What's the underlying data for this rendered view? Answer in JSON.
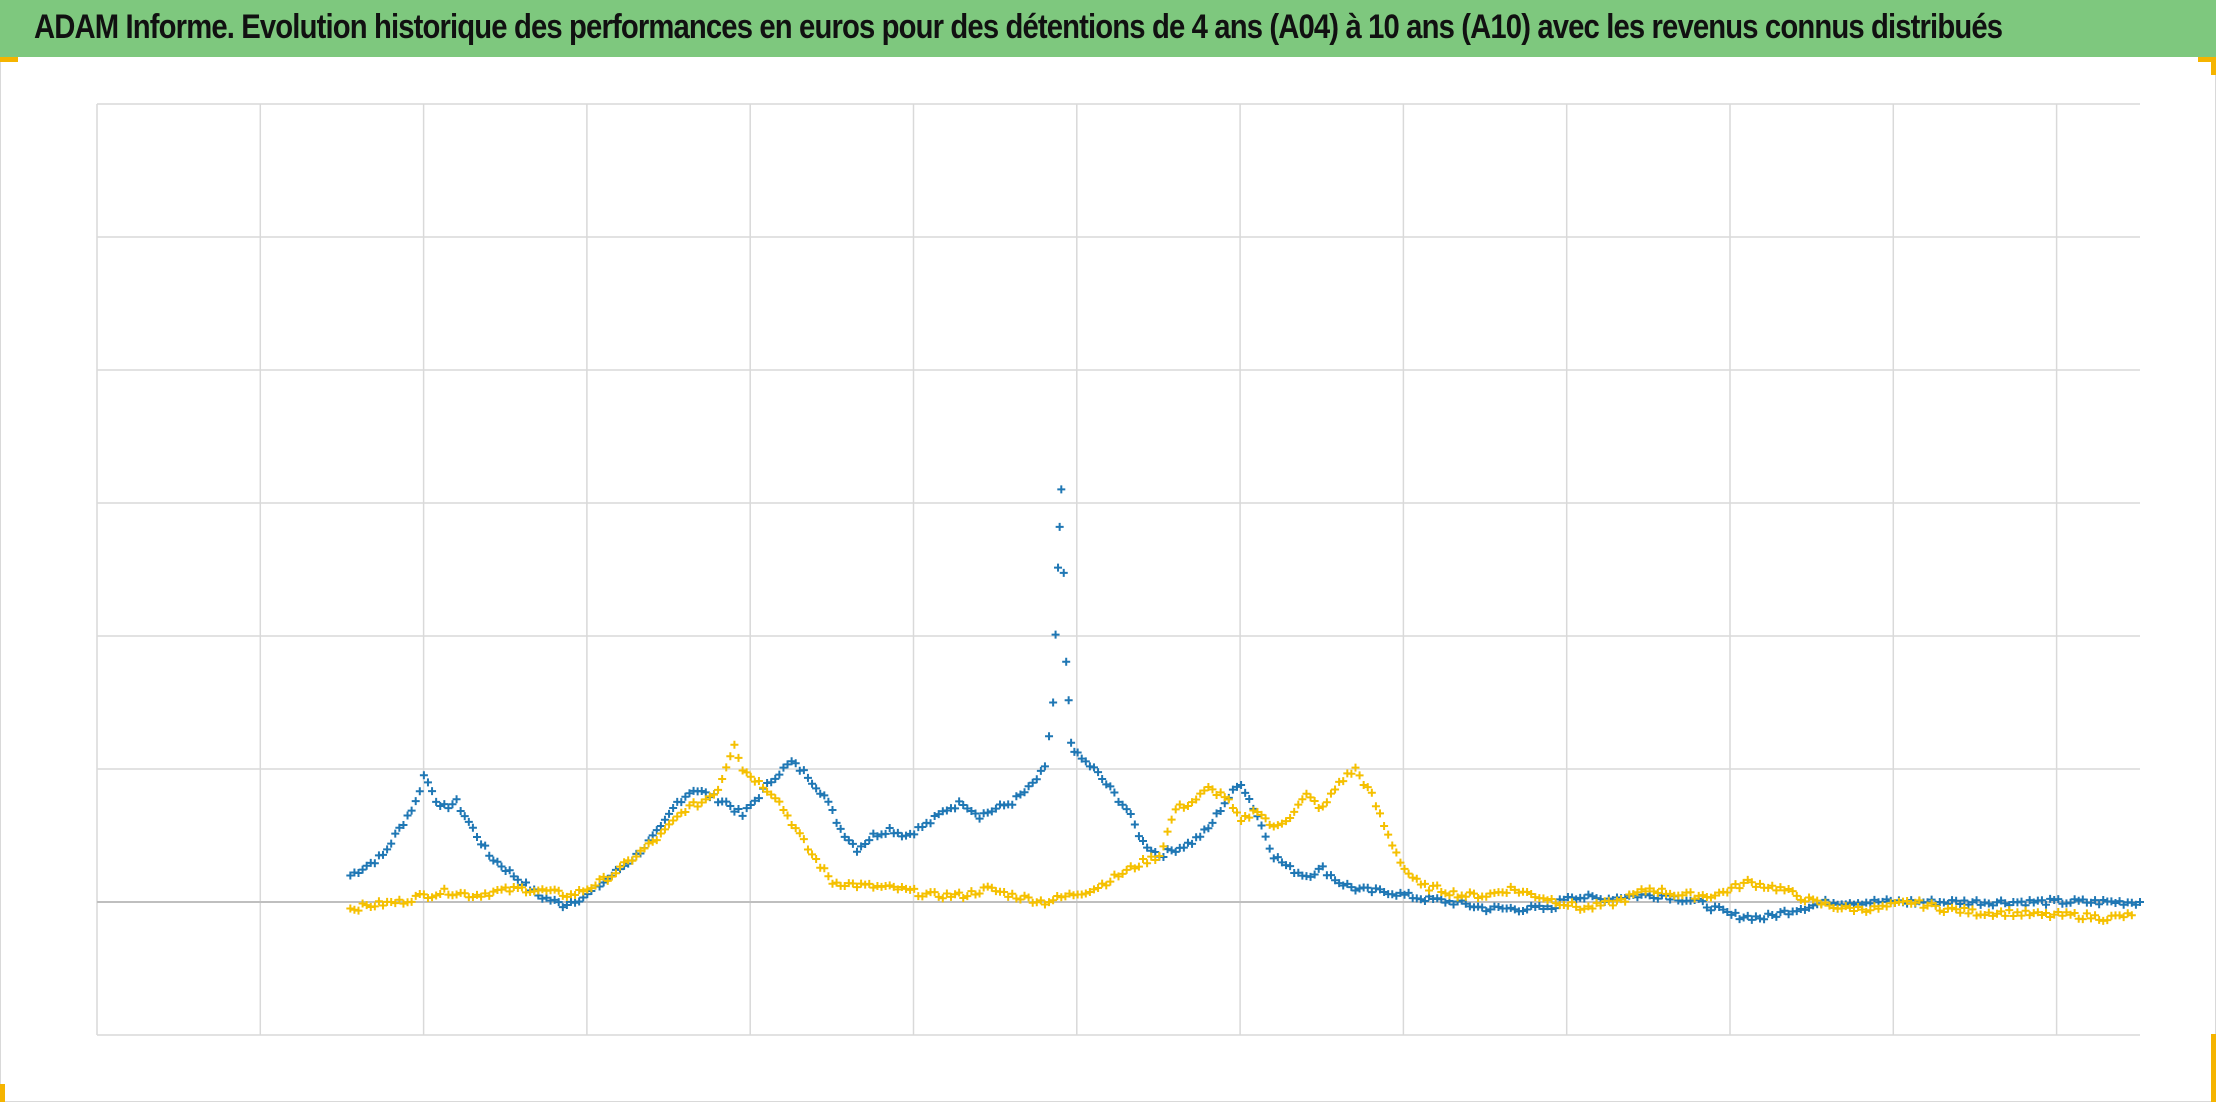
{
  "title": "ADAM Informe. Evolution historique des performances en euros pour des détentions de 4 ans (A04) à 10 ans (A10) avec les revenus connus distribués",
  "colors": {
    "title_bar": "#7ec87e",
    "series_a04": "#1f77b4",
    "series_a10": "#f5c000",
    "grid": "#d9d9d9",
    "zero_line": "#bfbfbf",
    "corner_marks": "#f5b400"
  },
  "chart_data": {
    "type": "scatter",
    "marker": "plus",
    "x_range": [
      0,
      12.5
    ],
    "y_range": [
      -1,
      6
    ],
    "vertical_gridlines": 13,
    "horizontal_gridlines": 8,
    "zero_line": 0,
    "axis_labels_visible": false,
    "legend": "none",
    "series": [
      {
        "key": "a04",
        "color": "#1f77b4",
        "points": [
          [
            1.55,
            0.2
          ],
          [
            1.75,
            0.35
          ],
          [
            1.85,
            0.55
          ],
          [
            1.95,
            0.75
          ],
          [
            2.0,
            0.95
          ],
          [
            2.05,
            0.85
          ],
          [
            2.1,
            0.7
          ],
          [
            2.2,
            0.75
          ],
          [
            2.3,
            0.55
          ],
          [
            2.4,
            0.35
          ],
          [
            2.5,
            0.25
          ],
          [
            2.6,
            0.15
          ],
          [
            2.7,
            0.05
          ],
          [
            2.85,
            -0.02
          ],
          [
            3.0,
            0.05
          ],
          [
            3.1,
            0.15
          ],
          [
            3.2,
            0.25
          ],
          [
            3.3,
            0.35
          ],
          [
            3.45,
            0.55
          ],
          [
            3.55,
            0.75
          ],
          [
            3.65,
            0.85
          ],
          [
            3.75,
            0.8
          ],
          [
            3.85,
            0.75
          ],
          [
            3.95,
            0.65
          ],
          [
            4.05,
            0.8
          ],
          [
            4.15,
            0.95
          ],
          [
            4.25,
            1.05
          ],
          [
            4.35,
            0.95
          ],
          [
            4.45,
            0.8
          ],
          [
            4.55,
            0.55
          ],
          [
            4.65,
            0.4
          ],
          [
            4.75,
            0.5
          ],
          [
            4.85,
            0.55
          ],
          [
            4.95,
            0.5
          ],
          [
            5.1,
            0.6
          ],
          [
            5.2,
            0.7
          ],
          [
            5.3,
            0.75
          ],
          [
            5.4,
            0.65
          ],
          [
            5.5,
            0.7
          ],
          [
            5.6,
            0.75
          ],
          [
            5.7,
            0.85
          ],
          [
            5.8,
            1.0
          ],
          [
            5.85,
            1.5
          ],
          [
            5.88,
            2.5
          ],
          [
            5.9,
            3.1
          ],
          [
            5.93,
            1.8
          ],
          [
            5.96,
            1.2
          ],
          [
            6.0,
            1.1
          ],
          [
            6.1,
            1.0
          ],
          [
            6.2,
            0.85
          ],
          [
            6.3,
            0.7
          ],
          [
            6.4,
            0.45
          ],
          [
            6.5,
            0.35
          ],
          [
            6.6,
            0.4
          ],
          [
            6.7,
            0.45
          ],
          [
            6.8,
            0.55
          ],
          [
            6.9,
            0.75
          ],
          [
            7.0,
            0.9
          ],
          [
            7.1,
            0.65
          ],
          [
            7.2,
            0.35
          ],
          [
            7.3,
            0.25
          ],
          [
            7.4,
            0.2
          ],
          [
            7.5,
            0.25
          ],
          [
            7.6,
            0.15
          ],
          [
            7.7,
            0.1
          ],
          [
            7.8,
            0.08
          ],
          [
            7.9,
            0.08
          ],
          [
            8.0,
            0.05
          ],
          [
            8.15,
            0.02
          ],
          [
            8.3,
            0.0
          ],
          [
            8.5,
            -0.05
          ],
          [
            8.7,
            -0.05
          ],
          [
            8.9,
            -0.05
          ],
          [
            9.0,
            0.05
          ],
          [
            9.2,
            0.02
          ],
          [
            9.4,
            0.05
          ],
          [
            9.6,
            0.05
          ],
          [
            9.8,
            0.0
          ],
          [
            10.0,
            -0.1
          ],
          [
            10.2,
            -0.12
          ],
          [
            10.4,
            -0.05
          ],
          [
            10.6,
            0.0
          ],
          [
            10.8,
            0.0
          ],
          [
            11.0,
            0.0
          ],
          [
            11.2,
            0.0
          ],
          [
            11.4,
            0.0
          ],
          [
            11.6,
            0.0
          ],
          [
            11.8,
            0.0
          ],
          [
            12.0,
            0.0
          ],
          [
            12.2,
            0.0
          ],
          [
            12.5,
            0.0
          ]
        ]
      },
      {
        "key": "a10",
        "color": "#f5c000",
        "points": [
          [
            1.55,
            -0.05
          ],
          [
            1.7,
            -0.02
          ],
          [
            1.85,
            0.0
          ],
          [
            2.0,
            0.05
          ],
          [
            2.15,
            0.08
          ],
          [
            2.3,
            0.05
          ],
          [
            2.45,
            0.08
          ],
          [
            2.6,
            0.1
          ],
          [
            2.75,
            0.08
          ],
          [
            2.9,
            0.05
          ],
          [
            3.0,
            0.1
          ],
          [
            3.15,
            0.2
          ],
          [
            3.3,
            0.35
          ],
          [
            3.45,
            0.5
          ],
          [
            3.6,
            0.7
          ],
          [
            3.7,
            0.75
          ],
          [
            3.8,
            0.85
          ],
          [
            3.9,
            1.2
          ],
          [
            3.95,
            1.0
          ],
          [
            4.05,
            0.9
          ],
          [
            4.15,
            0.8
          ],
          [
            4.25,
            0.6
          ],
          [
            4.35,
            0.4
          ],
          [
            4.5,
            0.15
          ],
          [
            4.7,
            0.12
          ],
          [
            4.9,
            0.1
          ],
          [
            5.1,
            0.05
          ],
          [
            5.3,
            0.05
          ],
          [
            5.45,
            0.1
          ],
          [
            5.6,
            0.05
          ],
          [
            5.8,
            0.0
          ],
          [
            5.95,
            0.05
          ],
          [
            6.1,
            0.1
          ],
          [
            6.25,
            0.2
          ],
          [
            6.4,
            0.3
          ],
          [
            6.5,
            0.35
          ],
          [
            6.6,
            0.7
          ],
          [
            6.7,
            0.75
          ],
          [
            6.8,
            0.85
          ],
          [
            6.9,
            0.8
          ],
          [
            7.0,
            0.6
          ],
          [
            7.1,
            0.7
          ],
          [
            7.2,
            0.55
          ],
          [
            7.3,
            0.65
          ],
          [
            7.4,
            0.8
          ],
          [
            7.5,
            0.7
          ],
          [
            7.6,
            0.9
          ],
          [
            7.7,
            1.0
          ],
          [
            7.8,
            0.8
          ],
          [
            7.9,
            0.5
          ],
          [
            8.0,
            0.25
          ],
          [
            8.1,
            0.12
          ],
          [
            8.2,
            0.1
          ],
          [
            8.35,
            0.05
          ],
          [
            8.5,
            0.05
          ],
          [
            8.65,
            0.1
          ],
          [
            8.8,
            0.05
          ],
          [
            8.95,
            0.0
          ],
          [
            9.1,
            -0.05
          ],
          [
            9.3,
            0.0
          ],
          [
            9.5,
            0.1
          ],
          [
            9.7,
            0.05
          ],
          [
            9.9,
            0.05
          ],
          [
            10.1,
            0.15
          ],
          [
            10.3,
            0.1
          ],
          [
            10.5,
            0.0
          ],
          [
            10.7,
            -0.05
          ],
          [
            10.9,
            -0.05
          ],
          [
            11.1,
            0.0
          ],
          [
            11.3,
            -0.05
          ],
          [
            11.5,
            -0.08
          ],
          [
            11.7,
            -0.08
          ],
          [
            11.9,
            -0.1
          ],
          [
            12.1,
            -0.1
          ],
          [
            12.3,
            -0.12
          ],
          [
            12.45,
            -0.1
          ]
        ]
      }
    ]
  }
}
